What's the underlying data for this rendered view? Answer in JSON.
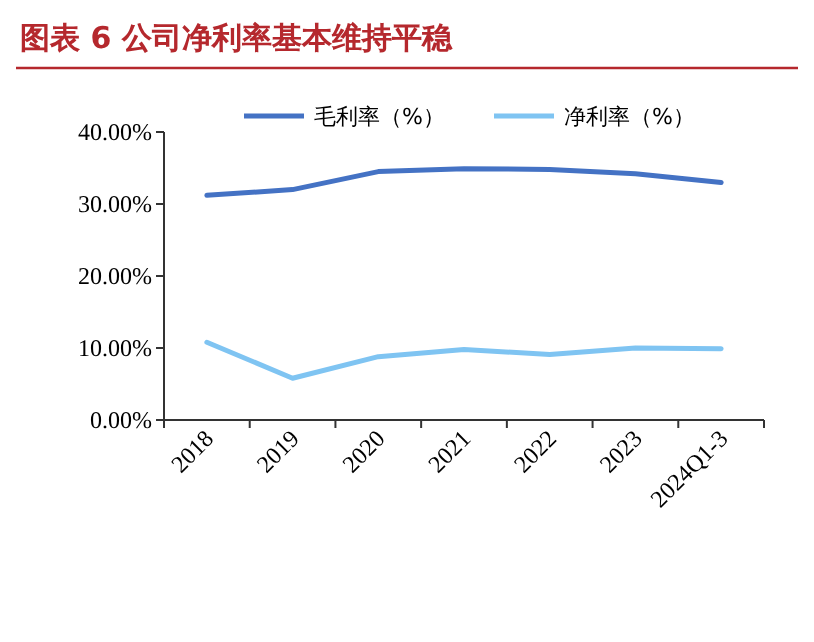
{
  "chart_data": {
    "type": "line",
    "title": "图表 6 公司净利率基本维持平稳",
    "categories": [
      "2018",
      "2019",
      "2020",
      "2021",
      "2022",
      "2023",
      "2024Q1-3"
    ],
    "series": [
      {
        "name": "毛利率（%）",
        "color": "#4472c4",
        "values": [
          31.2,
          32.0,
          34.5,
          34.9,
          34.8,
          34.2,
          33.0
        ]
      },
      {
        "name": "净利率（%）",
        "color": "#7fc4f2",
        "values": [
          10.8,
          5.8,
          8.8,
          9.8,
          9.1,
          10.0,
          9.9
        ]
      }
    ],
    "ylim": [
      0,
      40
    ],
    "yticks": [
      {
        "value": 0,
        "label": "0.00%"
      },
      {
        "value": 10,
        "label": "10.00%"
      },
      {
        "value": 20,
        "label": "20.00%"
      },
      {
        "value": 30,
        "label": "30.00%"
      },
      {
        "value": 40,
        "label": "40.00%"
      }
    ],
    "grid": false,
    "legend": "top",
    "marker": "none",
    "line_style": "solid"
  }
}
